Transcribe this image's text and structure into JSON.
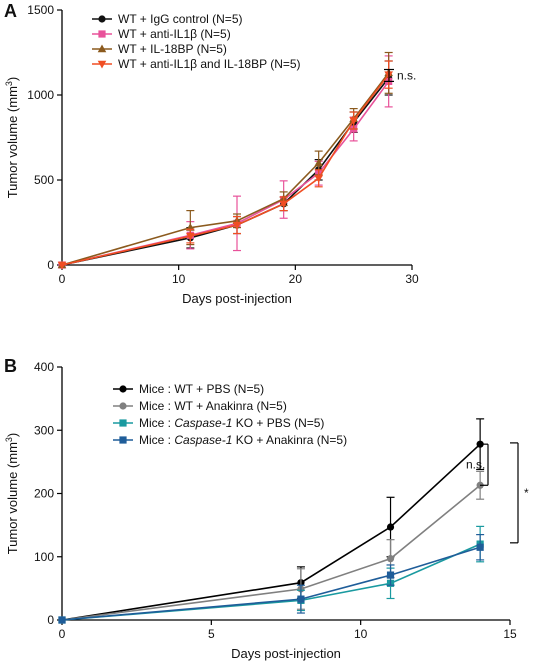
{
  "chart_data": [
    {
      "type": "line",
      "panel": "A",
      "ylabel": "Tumor volume (mm",
      "ylabel_sup": "3",
      "ylabel_close": ")",
      "xlabel": "Days post-injection",
      "xlim": [
        0,
        30
      ],
      "ylim": [
        0,
        1500
      ],
      "xticks": [
        0,
        10,
        20,
        30
      ],
      "yticks": [
        0,
        500,
        1000,
        1500
      ],
      "legend_position": "top-left",
      "grid": false,
      "series": [
        {
          "name": "WT + IgG control (N=5)",
          "color": "#111111",
          "marker": "circle",
          "x": [
            0,
            11,
            15,
            19,
            22,
            25,
            28
          ],
          "y": [
            0,
            160,
            235,
            360,
            560,
            840,
            1100
          ],
          "err": [
            0,
            60,
            50,
            40,
            60,
            60,
            100
          ]
        },
        {
          "name": "WT + anti-IL1β (N=5)",
          "color": "#e8529a",
          "marker": "square",
          "x": [
            0,
            11,
            15,
            19,
            22,
            25,
            28
          ],
          "y": [
            0,
            175,
            245,
            385,
            540,
            800,
            1080
          ],
          "err": [
            0,
            80,
            160,
            110,
            70,
            70,
            150
          ]
        },
        {
          "name": "WT + IL-18BP (N=5)",
          "color": "#8b5a1e",
          "marker": "triangle-up",
          "x": [
            0,
            11,
            15,
            19,
            22,
            25,
            28
          ],
          "y": [
            0,
            220,
            260,
            390,
            600,
            860,
            1130
          ],
          "err": [
            0,
            100,
            40,
            40,
            70,
            60,
            120
          ]
        },
        {
          "name": "WT + anti-IL1β and IL-18BP (N=5)",
          "color": "#f04e23",
          "marker": "triangle-down",
          "x": [
            0,
            11,
            15,
            19,
            22,
            25,
            28
          ],
          "y": [
            0,
            170,
            235,
            360,
            510,
            850,
            1120
          ],
          "err": [
            0,
            40,
            50,
            40,
            50,
            50,
            80
          ]
        }
      ],
      "annotations": [
        {
          "text": "n.s.",
          "x": 28.5,
          "y_range": [
            1080,
            1150
          ]
        }
      ]
    },
    {
      "type": "line",
      "panel": "B",
      "ylabel": "Tumor volume (mm",
      "ylabel_sup": "3",
      "ylabel_close": ")",
      "xlabel": "Days post-injection",
      "xlim": [
        0,
        15
      ],
      "ylim": [
        0,
        400
      ],
      "xticks": [
        0,
        5,
        10,
        15
      ],
      "yticks": [
        0,
        100,
        200,
        300,
        400
      ],
      "legend_position": "top-left",
      "grid": false,
      "series": [
        {
          "name": "Mice : WT + PBS (N=5)",
          "label_parts": [
            "Mice : WT + PBS (N=5)"
          ],
          "color": "#000000",
          "marker": "circle",
          "x": [
            0,
            8,
            11,
            14
          ],
          "y": [
            0,
            59,
            147,
            278
          ],
          "err": [
            0,
            25,
            47,
            40
          ]
        },
        {
          "name": "Mice : WT + Anakinra (N=5)",
          "label_parts": [
            "Mice : WT + Anakinra (N=5)"
          ],
          "color": "#808080",
          "marker": "circle",
          "x": [
            0,
            8,
            11,
            14
          ],
          "y": [
            0,
            49,
            97,
            213
          ],
          "err": [
            0,
            32,
            30,
            22
          ]
        },
        {
          "name": "Mice : Caspase-1 KO + PBS (N=5)",
          "label_parts": [
            "Mice : ",
            "Caspase-1",
            " KO + PBS (N=5)"
          ],
          "color": "#1a9aa0",
          "marker": "square",
          "x": [
            0,
            8,
            11,
            14
          ],
          "y": [
            0,
            31,
            58,
            120
          ],
          "err": [
            0,
            16,
            24,
            28
          ]
        },
        {
          "name": "Mice : Caspase-1 KO + Anakinra (N=5)",
          "label_parts": [
            "Mice : ",
            "Caspase-1",
            " KO + Anakinra (N=5)"
          ],
          "color": "#1f5d99",
          "marker": "square",
          "x": [
            0,
            8,
            11,
            14
          ],
          "y": [
            0,
            33,
            71,
            115
          ],
          "err": [
            0,
            22,
            16,
            20
          ]
        }
      ],
      "annotations": [
        {
          "text": "n.s.",
          "y_range": [
            213,
            278
          ]
        },
        {
          "text": "*",
          "y_range": [
            122,
            280
          ]
        }
      ]
    }
  ]
}
